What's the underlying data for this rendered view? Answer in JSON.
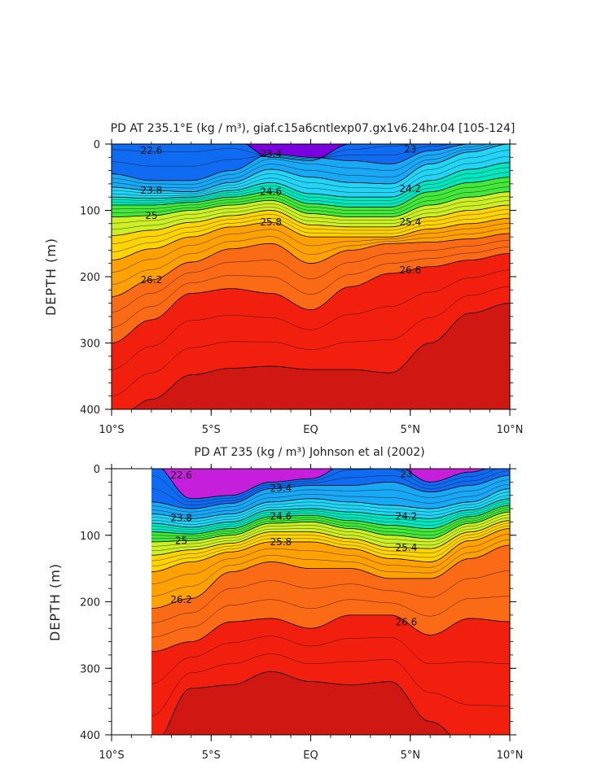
{
  "chart_data": [
    {
      "type": "contour",
      "title": "PD AT 235.1°E (kg / m³), giaf.c15a6cntlexp07.gx1v6.24hr.04 [105-124]",
      "ylabel": "DEPTH (m)",
      "xlabel": "",
      "xlim": [
        -10,
        10
      ],
      "ylim": [
        400,
        0
      ],
      "x_tick_values": [
        -10,
        -5,
        0,
        5,
        10
      ],
      "x_tick_labels": [
        "10°S",
        "5°S",
        "EQ",
        "5°N",
        "10°N"
      ],
      "y_ticks": [
        0,
        100,
        200,
        300,
        400
      ],
      "contour_levels": [
        22.6,
        23.0,
        23.4,
        23.8,
        24.2,
        24.6,
        25.0,
        25.4,
        25.8,
        26.2,
        26.6
      ],
      "x_nodes": [
        -10,
        -8,
        -6,
        -4,
        -2,
        0,
        2,
        4,
        6,
        8,
        10
      ],
      "isopycnal_depths": [
        {
          "level": 23.0,
          "depths": [
            -10,
            -10,
            -10,
            -10,
            20,
            25,
            0,
            -10,
            -10,
            -10,
            -10
          ]
        },
        {
          "level": 23.4,
          "depths": [
            45,
            55,
            55,
            40,
            15,
            20,
            25,
            30,
            10,
            0,
            -10
          ]
        },
        {
          "level": 23.8,
          "depths": [
            65,
            70,
            72,
            58,
            38,
            50,
            58,
            60,
            30,
            12,
            0
          ]
        },
        {
          "level": 24.2,
          "depths": [
            80,
            82,
            80,
            70,
            58,
            75,
            80,
            80,
            55,
            38,
            28
          ]
        },
        {
          "level": 24.6,
          "depths": [
            92,
            92,
            88,
            80,
            72,
            90,
            95,
            95,
            72,
            58,
            50
          ]
        },
        {
          "level": 25.0,
          "depths": [
            110,
            108,
            100,
            92,
            85,
            105,
            110,
            110,
            92,
            80,
            72
          ]
        },
        {
          "level": 25.4,
          "depths": [
            138,
            130,
            118,
            108,
            100,
            122,
            125,
            125,
            110,
            100,
            92
          ]
        },
        {
          "level": 25.8,
          "depths": [
            175,
            158,
            140,
            125,
            118,
            140,
            140,
            140,
            128,
            120,
            112
          ]
        },
        {
          "level": 26.2,
          "depths": [
            230,
            205,
            178,
            158,
            150,
            180,
            160,
            150,
            148,
            143,
            135
          ]
        },
        {
          "level": 26.6,
          "depths": [
            300,
            265,
            225,
            218,
            225,
            250,
            215,
            195,
            185,
            175,
            165
          ]
        },
        {
          "level": 27.0,
          "depths": [
            420,
            385,
            348,
            338,
            335,
            340,
            340,
            345,
            300,
            255,
            240
          ]
        }
      ],
      "contour_labels": [
        "22.6",
        "23",
        "23.4",
        "23.8",
        "24.2",
        "24.6",
        "25",
        "25.4",
        "25.8",
        "26.2",
        "26.6"
      ],
      "colors": {
        "21.8": "#7b00e0",
        "22.2": "#3d1ee6",
        "22.6": "#0015e0",
        "23.0": "#0f6cf2",
        "23.4": "#18a8f5",
        "23.8": "#22d4f5",
        "24.2": "#00e8c0",
        "24.6": "#43e83a",
        "25.0": "#cdf024",
        "25.4": "#ffd400",
        "25.8": "#ffa100",
        "26.2": "#fb6a14",
        "26.6": "#f21f0f",
        "27.0": "#d01712"
      }
    },
    {
      "type": "contour",
      "title": "PD AT 235 (kg / m³) Johnson et al (2002)",
      "ylabel": "DEPTH (m)",
      "xlabel": "",
      "xlim": [
        -10,
        10
      ],
      "ylim": [
        400,
        0
      ],
      "data_x_start": -8,
      "x_tick_values": [
        -10,
        -5,
        0,
        5,
        10
      ],
      "x_tick_labels": [
        "10°S",
        "5°S",
        "EQ",
        "5°N",
        "10°N"
      ],
      "y_ticks": [
        0,
        100,
        200,
        300,
        400
      ],
      "contour_levels": [
        22.6,
        23.0,
        23.4,
        23.8,
        24.2,
        24.6,
        25.0,
        25.4,
        25.8,
        26.2,
        26.6
      ],
      "x_nodes": [
        -8,
        -6,
        -4,
        -2,
        0,
        2,
        4,
        6,
        8,
        10
      ],
      "isopycnal_depths": [
        {
          "level": 23.0,
          "depths": [
            -10,
            45,
            40,
            20,
            15,
            -10,
            -10,
            20,
            5,
            -10
          ]
        },
        {
          "level": 23.4,
          "depths": [
            50,
            60,
            52,
            30,
            25,
            25,
            20,
            35,
            25,
            10
          ]
        },
        {
          "level": 23.8,
          "depths": [
            68,
            75,
            68,
            50,
            45,
            50,
            55,
            60,
            50,
            30
          ]
        },
        {
          "level": 24.2,
          "depths": [
            82,
            88,
            80,
            62,
            60,
            65,
            70,
            75,
            62,
            45
          ]
        },
        {
          "level": 24.6,
          "depths": [
            95,
            98,
            90,
            72,
            70,
            78,
            85,
            90,
            72,
            55
          ]
        },
        {
          "level": 25.0,
          "depths": [
            110,
            108,
            100,
            82,
            80,
            90,
            100,
            105,
            82,
            65
          ]
        },
        {
          "level": 25.4,
          "depths": [
            130,
            122,
            112,
            95,
            95,
            105,
            118,
            120,
            95,
            78
          ]
        },
        {
          "level": 25.8,
          "depths": [
            155,
            140,
            125,
            110,
            110,
            120,
            135,
            140,
            108,
            90
          ]
        },
        {
          "level": 26.2,
          "depths": [
            210,
            195,
            155,
            140,
            150,
            150,
            165,
            165,
            135,
            115
          ]
        },
        {
          "level": 26.6,
          "depths": [
            275,
            260,
            230,
            225,
            240,
            220,
            220,
            250,
            225,
            230
          ]
        },
        {
          "level": 27.0,
          "depths": [
            420,
            330,
            325,
            305,
            320,
            325,
            320,
            380,
            420,
            420
          ]
        }
      ],
      "contour_labels": [
        "22.6",
        "23",
        "23.4",
        "23.8",
        "24.2",
        "24.6",
        "25",
        "25.4",
        "25.8",
        "26.2",
        "26.6"
      ],
      "colors": {
        "21.8": "#c51fdc",
        "22.2": "#3d1ee6",
        "22.6": "#0015e0",
        "23.0": "#0f6cf2",
        "23.4": "#18a8f5",
        "23.8": "#22d4f5",
        "24.2": "#00e8c0",
        "24.6": "#43e83a",
        "25.0": "#cdf024",
        "25.4": "#ffd400",
        "25.8": "#ffa100",
        "26.2": "#fb6a14",
        "26.6": "#f21f0f",
        "27.0": "#d01712"
      }
    }
  ]
}
